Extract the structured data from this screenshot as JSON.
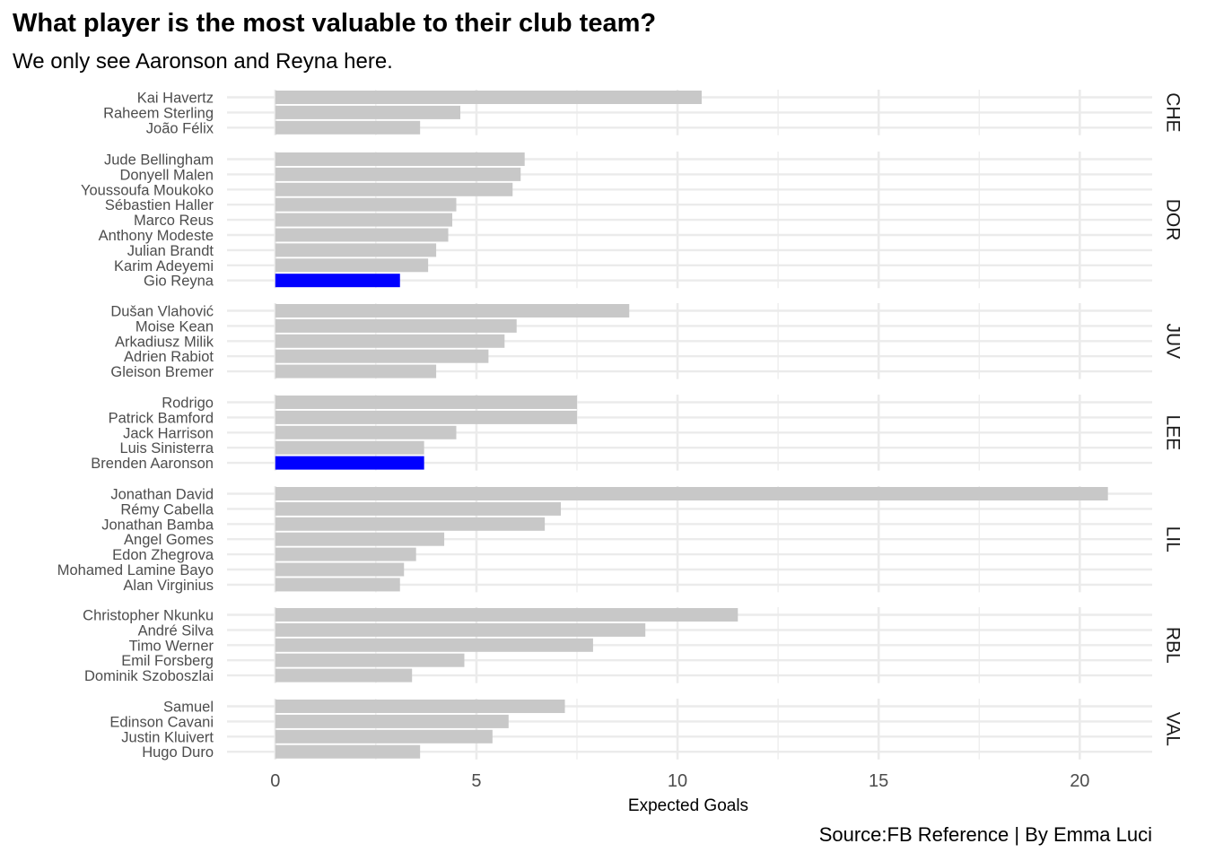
{
  "chart_data": {
    "type": "bar",
    "orientation": "horizontal",
    "title": "What player is the most valuable to their club team?",
    "subtitle": "We only see Aaronson and Reyna here.",
    "xlabel": "Expected Goals",
    "ylabel": "",
    "caption": "Source:FB Reference | By Emma Luci",
    "xlim": [
      -1.2,
      21.8
    ],
    "xticks": [
      0,
      5,
      10,
      15,
      20
    ],
    "grid": true,
    "legend": "none",
    "colors": {
      "default": "#c8c8c8",
      "highlight": "#0000ff",
      "grid": "#ebebeb",
      "tick_label": "#4d4d4d"
    },
    "facets": [
      {
        "label": "CHE",
        "players": [
          {
            "name": "Kai Havertz",
            "value": 10.6,
            "highlight": false
          },
          {
            "name": "Raheem Sterling",
            "value": 4.6,
            "highlight": false
          },
          {
            "name": "João Félix",
            "value": 3.6,
            "highlight": false
          }
        ]
      },
      {
        "label": "DOR",
        "players": [
          {
            "name": "Jude Bellingham",
            "value": 6.2,
            "highlight": false
          },
          {
            "name": "Donyell Malen",
            "value": 6.1,
            "highlight": false
          },
          {
            "name": "Youssoufa Moukoko",
            "value": 5.9,
            "highlight": false
          },
          {
            "name": "Sébastien Haller",
            "value": 4.5,
            "highlight": false
          },
          {
            "name": "Marco Reus",
            "value": 4.4,
            "highlight": false
          },
          {
            "name": "Anthony Modeste",
            "value": 4.3,
            "highlight": false
          },
          {
            "name": "Julian Brandt",
            "value": 4.0,
            "highlight": false
          },
          {
            "name": "Karim Adeyemi",
            "value": 3.8,
            "highlight": false
          },
          {
            "name": "Gio Reyna",
            "value": 3.1,
            "highlight": true
          }
        ]
      },
      {
        "label": "JUV",
        "players": [
          {
            "name": "Dušan Vlahović",
            "value": 8.8,
            "highlight": false
          },
          {
            "name": "Moise Kean",
            "value": 6.0,
            "highlight": false
          },
          {
            "name": "Arkadiusz Milik",
            "value": 5.7,
            "highlight": false
          },
          {
            "name": "Adrien Rabiot",
            "value": 5.3,
            "highlight": false
          },
          {
            "name": "Gleison Bremer",
            "value": 4.0,
            "highlight": false
          }
        ]
      },
      {
        "label": "LEE",
        "players": [
          {
            "name": "Rodrigo",
            "value": 7.5,
            "highlight": false
          },
          {
            "name": "Patrick Bamford",
            "value": 7.5,
            "highlight": false
          },
          {
            "name": "Jack Harrison",
            "value": 4.5,
            "highlight": false
          },
          {
            "name": "Luis Sinisterra",
            "value": 3.7,
            "highlight": false
          },
          {
            "name": "Brenden Aaronson",
            "value": 3.7,
            "highlight": true
          }
        ]
      },
      {
        "label": "LIL",
        "players": [
          {
            "name": "Jonathan David",
            "value": 20.7,
            "highlight": false
          },
          {
            "name": "Rémy Cabella",
            "value": 7.1,
            "highlight": false
          },
          {
            "name": "Jonathan Bamba",
            "value": 6.7,
            "highlight": false
          },
          {
            "name": "Angel Gomes",
            "value": 4.2,
            "highlight": false
          },
          {
            "name": "Edon Zhegrova",
            "value": 3.5,
            "highlight": false
          },
          {
            "name": "Mohamed Lamine Bayo",
            "value": 3.2,
            "highlight": false
          },
          {
            "name": "Alan Virginius",
            "value": 3.1,
            "highlight": false
          }
        ]
      },
      {
        "label": "RBL",
        "players": [
          {
            "name": "Christopher Nkunku",
            "value": 11.5,
            "highlight": false
          },
          {
            "name": "André Silva",
            "value": 9.2,
            "highlight": false
          },
          {
            "name": "Timo Werner",
            "value": 7.9,
            "highlight": false
          },
          {
            "name": "Emil Forsberg",
            "value": 4.7,
            "highlight": false
          },
          {
            "name": "Dominik Szoboszlai",
            "value": 3.4,
            "highlight": false
          }
        ]
      },
      {
        "label": "VAL",
        "players": [
          {
            "name": "Samuel",
            "value": 7.2,
            "highlight": false
          },
          {
            "name": "Edinson Cavani",
            "value": 5.8,
            "highlight": false
          },
          {
            "name": "Justin Kluivert",
            "value": 5.4,
            "highlight": false
          },
          {
            "name": "Hugo Duro",
            "value": 3.6,
            "highlight": false
          }
        ]
      }
    ]
  }
}
